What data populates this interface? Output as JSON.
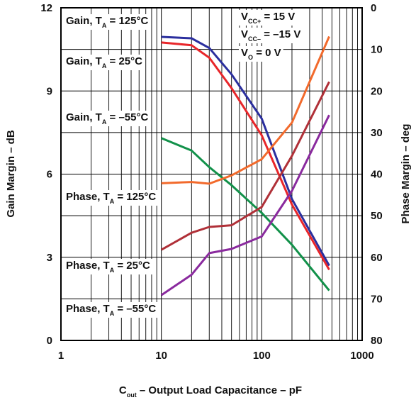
{
  "chart_data": {
    "type": "line",
    "xlabel": {
      "main": "C",
      "sub": "out",
      "rest": " – Output Load Capacitance – pF"
    },
    "ylabel_left": "Gain Margin – dB",
    "ylabel_right": "Phase Margin – deg",
    "x_scale": "log",
    "xlim": [
      1,
      1000
    ],
    "x_ticks": [
      1,
      10,
      100,
      1000
    ],
    "x_tick_labels": [
      "1",
      "10",
      "100",
      "1000"
    ],
    "ylim_left": [
      0,
      12
    ],
    "y_left_ticks": [
      0,
      3,
      6,
      9,
      12
    ],
    "y_left_tick_labels": [
      "0",
      "3",
      "6",
      "9",
      "12"
    ],
    "ylim_right": [
      80,
      0
    ],
    "y_right_ticks": [
      0,
      10,
      20,
      30,
      40,
      50,
      60,
      70,
      80
    ],
    "y_right_tick_labels": [
      "0",
      "10",
      "20",
      "30",
      "40",
      "50",
      "60",
      "70",
      "80"
    ],
    "grid": true,
    "conditions": [
      {
        "main": "V",
        "sub": "CC+",
        "rest": " = 15 V"
      },
      {
        "main": "V",
        "sub": "CC–",
        "rest": " = –15 V"
      },
      {
        "main": "V",
        "sub": "O",
        "rest": " = 0 V"
      }
    ],
    "series": [
      {
        "name": "Gain, TA = 125°C",
        "axis": "left",
        "color": "#2b2f9e",
        "x": [
          10,
          20,
          30,
          50,
          100,
          200,
          470
        ],
        "y": [
          10.95,
          10.9,
          10.55,
          9.6,
          8.0,
          5.1,
          2.7
        ]
      },
      {
        "name": "Gain, TA = 25°C",
        "axis": "left",
        "color": "#e8262a",
        "x": [
          10,
          20,
          30,
          50,
          100,
          200,
          470
        ],
        "y": [
          10.75,
          10.65,
          10.2,
          9.1,
          7.4,
          4.9,
          2.55
        ]
      },
      {
        "name": "Gain, TA = –55°C",
        "axis": "left",
        "color": "#12914a",
        "x": [
          10,
          20,
          30,
          50,
          100,
          200,
          470
        ],
        "y": [
          7.3,
          6.85,
          6.25,
          5.6,
          4.6,
          3.45,
          1.8
        ]
      },
      {
        "name": "Phase, TA = 125°C",
        "axis": "right",
        "color": "#f26a2c",
        "x": [
          10,
          20,
          30,
          50,
          100,
          200,
          470
        ],
        "y": [
          42.2,
          41.9,
          42.3,
          40.3,
          36.4,
          27.6,
          6.9
        ]
      },
      {
        "name": "Phase, TA = 25°C",
        "axis": "right",
        "color": "#b03038",
        "x": [
          10,
          20,
          30,
          50,
          100,
          200,
          470
        ],
        "y": [
          58.2,
          54.1,
          52.7,
          52.3,
          47.9,
          35.6,
          17.8
        ]
      },
      {
        "name": "Phase, TA = –55°C",
        "axis": "right",
        "color": "#8a2a9e",
        "x": [
          10,
          20,
          30,
          50,
          100,
          200,
          470
        ],
        "y": [
          69.1,
          64.2,
          59.0,
          58.0,
          55.0,
          44.0,
          25.8
        ]
      }
    ],
    "annotations": [
      {
        "head": "Gain, T",
        "sub": "A",
        "tail": " = 125°C"
      },
      {
        "head": "Gain, T",
        "sub": "A",
        "tail": " = 25°C"
      },
      {
        "head": "Gain, T",
        "sub": "A",
        "tail": " = –55°C"
      },
      {
        "head": "Phase, T",
        "sub": "A",
        "tail": " = 125°C"
      },
      {
        "head": "Phase, T",
        "sub": "A",
        "tail": " = 25°C"
      },
      {
        "head": "Phase, T",
        "sub": "A",
        "tail": " = –55°C"
      }
    ]
  }
}
